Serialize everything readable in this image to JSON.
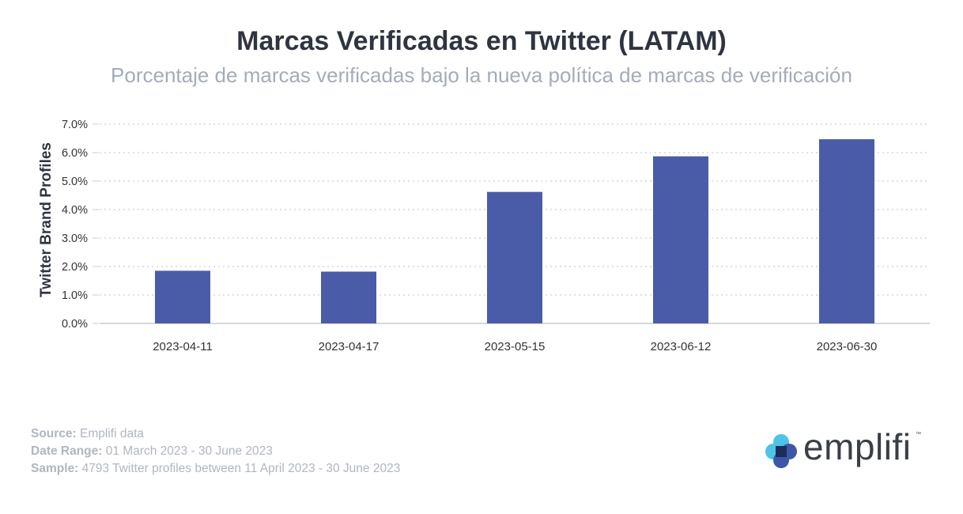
{
  "chart_data": {
    "type": "bar",
    "title": "Marcas Verificadas en Twitter (LATAM)",
    "subtitle": "Porcentaje de marcas verificadas bajo la nueva política de marcas de verificación",
    "ylabel": "Twitter Brand Profiles",
    "xlabel": "",
    "categories": [
      "2023-04-11",
      "2023-04-17",
      "2023-05-15",
      "2023-06-12",
      "2023-06-30"
    ],
    "values": [
      1.85,
      1.82,
      4.62,
      5.87,
      6.47
    ],
    "ylim": [
      0,
      7
    ],
    "yticks": [
      "0.0%",
      "1.0%",
      "2.0%",
      "3.0%",
      "4.0%",
      "5.0%",
      "6.0%",
      "7.0%"
    ],
    "grid": true,
    "bar_color": "#4a5ca8"
  },
  "footer": {
    "source_label": "Source:",
    "source_value": " Emplifi data",
    "date_label": "Date Range:",
    "date_value": " 01 March 2023 - 30 June 2023",
    "sample_label": "Sample:",
    "sample_value": " 4793 Twitter profiles between 11 April 2023 - 30 June 2023"
  },
  "logo": {
    "text": "emplifi",
    "tm": "™"
  }
}
